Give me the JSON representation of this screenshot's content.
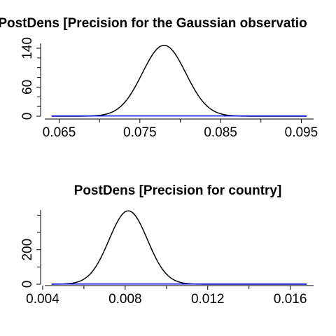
{
  "chart_data": [
    {
      "type": "line",
      "title": "PostDens [Precision for the Gaussian observatio",
      "xlabel": "",
      "ylabel": "",
      "xlim": [
        0.0627,
        0.0967
      ],
      "ylim": [
        0,
        150
      ],
      "x_ticks": [
        0.065,
        0.075,
        0.085,
        0.095
      ],
      "x_tick_labels": [
        "0.065",
        "0.075",
        "0.085",
        "0.095"
      ],
      "y_ticks": [
        0,
        60,
        140
      ],
      "y_tick_labels": [
        "0",
        "60",
        "140"
      ],
      "y_minor_ticks": [
        20,
        40,
        80,
        100,
        120
      ],
      "series": [
        {
          "color": "#000000",
          "density": {
            "mean": 0.078,
            "sd": 0.0027,
            "peak": 146
          }
        },
        {
          "color": "#0000ff",
          "constant": 0.5
        }
      ],
      "grid": false
    },
    {
      "type": "line",
      "title": "PostDens [Precision for country]",
      "xlabel": "",
      "ylabel": "",
      "xlim": [
        0.0039,
        0.0172
      ],
      "ylim": [
        0,
        430
      ],
      "x_ticks": [
        0.004,
        0.008,
        0.012,
        0.016
      ],
      "x_tick_labels": [
        "0.004",
        "0.008",
        "0.012",
        "0.016"
      ],
      "y_ticks": [
        0,
        200
      ],
      "y_tick_labels": [
        "0",
        "200"
      ],
      "y_minor_ticks": [
        100,
        300,
        400
      ],
      "series": [
        {
          "color": "#000000",
          "density": {
            "mean": 0.00815,
            "sd": 0.00093,
            "peak": 425
          }
        },
        {
          "color": "#0000ff",
          "constant": 1
        }
      ],
      "grid": false
    }
  ]
}
